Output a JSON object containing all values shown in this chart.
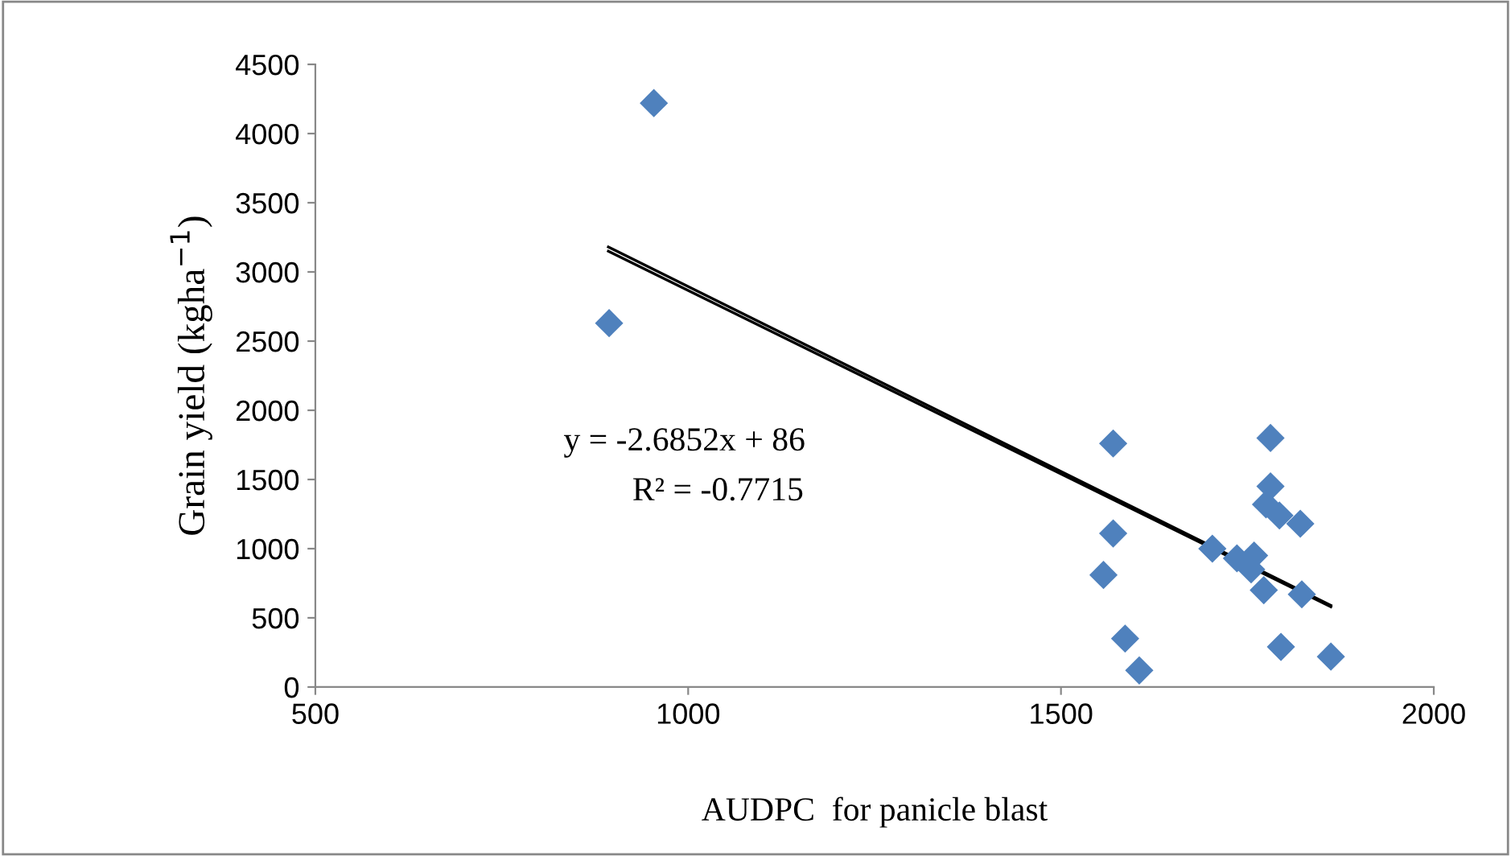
{
  "chart_data": {
    "type": "scatter",
    "xlabel": "AUDPC  for panicle blast",
    "ylabel": "Grain yield (kgha$^{−1}$)",
    "annotations": [
      "y = -2.6852x + 86",
      "R² = -0.7715"
    ],
    "series": [
      {
        "color": "#4f81bd",
        "marker": "diamond",
        "x": [
          954,
          894,
          1570,
          1781,
          1781,
          1775,
          1793,
          1821,
          1570,
          1703,
          1736,
          1759,
          1755,
          1772,
          1823,
          1557,
          1586,
          1605,
          1795,
          1862
        ],
        "values": [
          4220,
          2630,
          1760,
          1800,
          1450,
          1320,
          1240,
          1180,
          1110,
          1000,
          930,
          950,
          850,
          700,
          670,
          810,
          350,
          120,
          290,
          220
        ]
      },
      {
        "type": "line",
        "color": "#000000",
        "marker": "none",
        "x": [
          893,
          1862
        ],
        "values": [
          3180,
          590
        ]
      },
      {
        "type": "line",
        "color": "#000000",
        "marker": "none",
        "x": [
          893,
          1862
        ],
        "values": [
          3150,
          580
        ]
      }
    ],
    "xlim": [
      500,
      2000
    ],
    "xticks": [
      500,
      1000,
      1500,
      2000
    ],
    "ylim": [
      0,
      4500
    ],
    "yticks": [
      0,
      500,
      1000,
      1500,
      2000,
      2500,
      3000,
      3500,
      4000,
      4500
    ],
    "grid": false,
    "legend": false
  }
}
